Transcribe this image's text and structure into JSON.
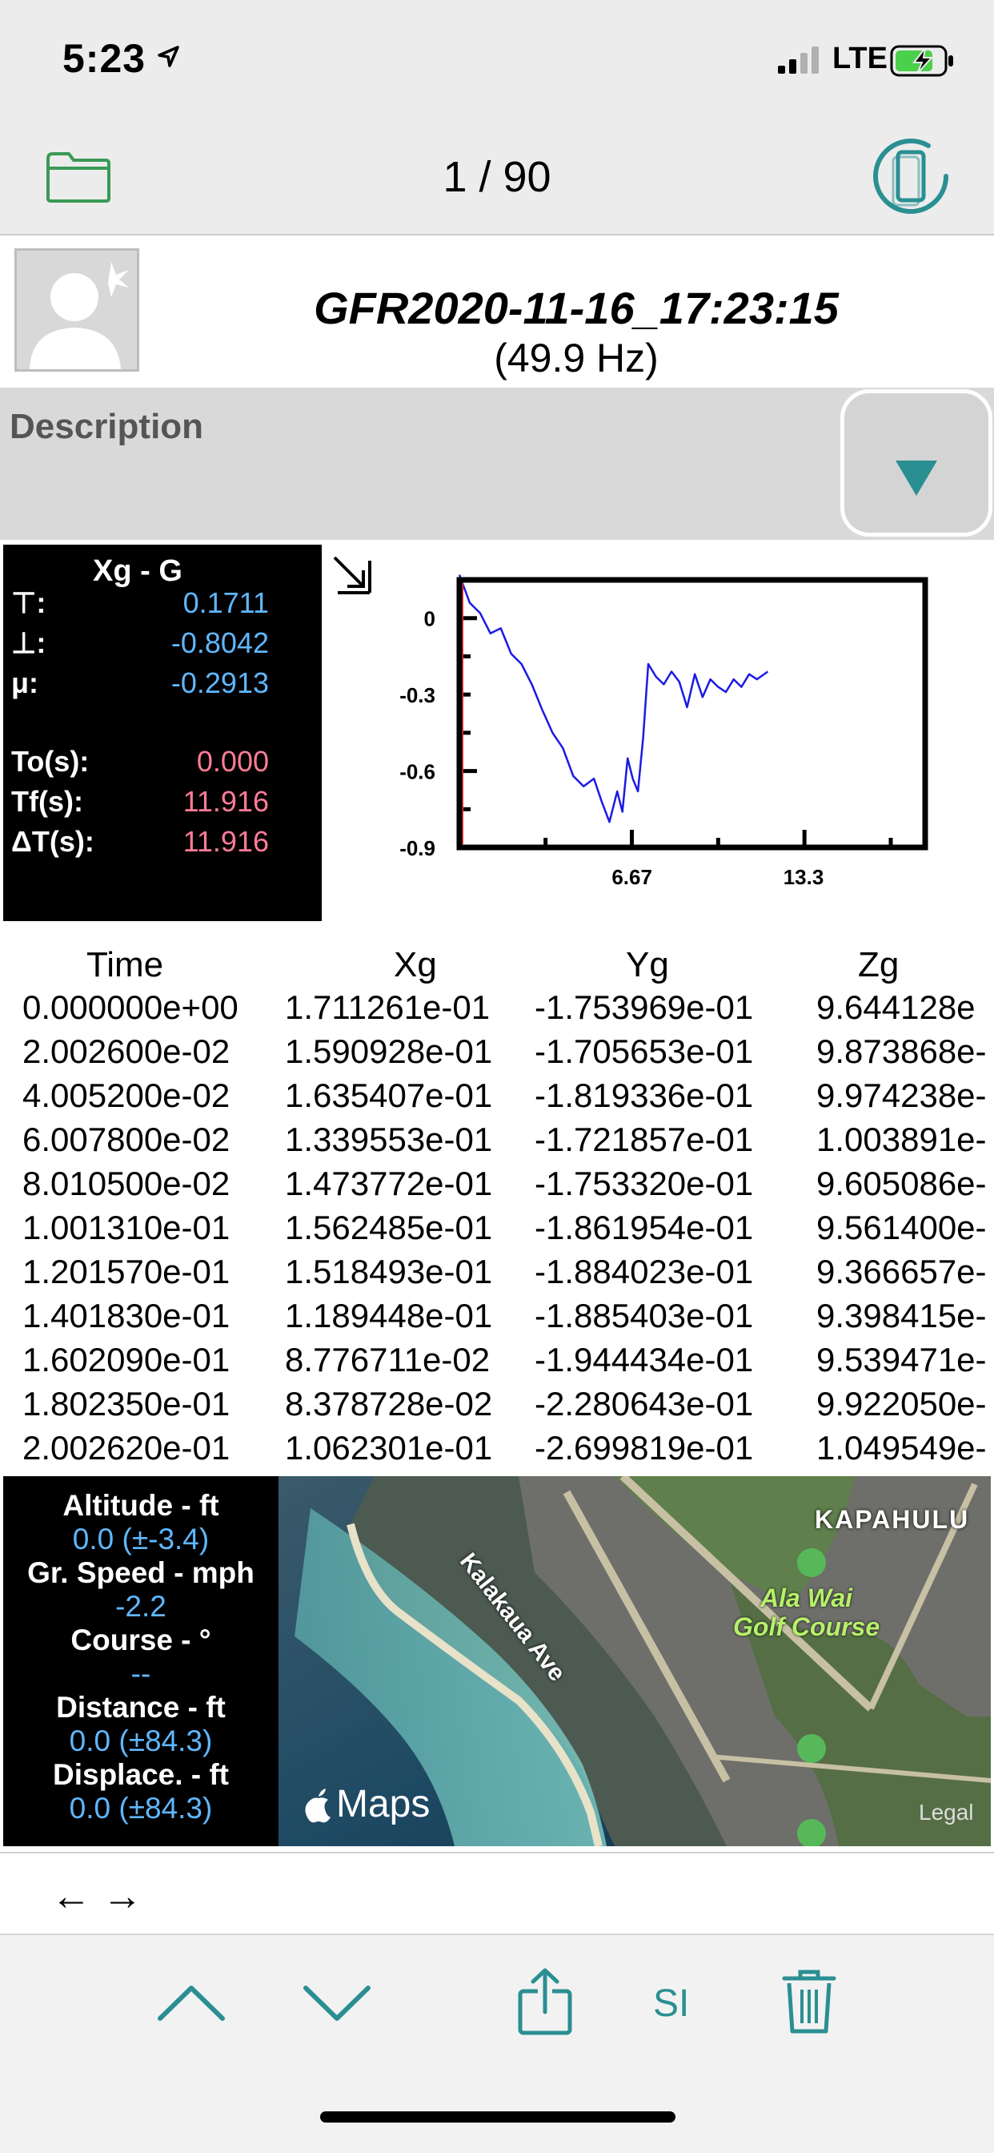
{
  "status_bar": {
    "time": "5:23",
    "network": "LTE"
  },
  "nav": {
    "page_counter": "1 / 90"
  },
  "record": {
    "title": "GFR2020-11-16_17:23:15",
    "rate": "(49.9 Hz)"
  },
  "description": {
    "label": "Description"
  },
  "stats": {
    "title": "Xg - G",
    "rows": [
      {
        "label": "⊤:",
        "value": "0.1711"
      },
      {
        "label": "⊥:",
        "value": "-0.8042"
      },
      {
        "label": "μ:",
        "value": "-0.2913"
      },
      {
        "label": "To(s):",
        "value": "0.000"
      },
      {
        "label": "Tf(s):",
        "value": "11.916"
      },
      {
        "label": "ΔT(s):",
        "value": "11.916"
      }
    ]
  },
  "chart_data": {
    "type": "line",
    "title": "",
    "xlabel": "",
    "ylabel": "",
    "xlim": [
      0,
      18
    ],
    "ylim": [
      -0.9,
      0.15
    ],
    "x_ticks": [
      "6.67",
      "13.3"
    ],
    "x_tick_values": [
      6.67,
      13.3
    ],
    "y_ticks": [
      "0",
      "-0.3",
      "-0.6",
      "-0.9"
    ],
    "y_tick_values": [
      0,
      -0.3,
      -0.6,
      -0.9
    ],
    "series": [
      {
        "color": "#1a1ae6",
        "x": [
          0,
          0.4,
          0.8,
          1.2,
          1.6,
          2.0,
          2.4,
          2.8,
          3.2,
          3.6,
          4.0,
          4.4,
          4.8,
          5.2,
          5.5,
          5.8,
          6.1,
          6.3,
          6.5,
          6.7,
          6.9,
          7.1,
          7.3,
          7.6,
          7.9,
          8.2,
          8.5,
          8.8,
          9.1,
          9.4,
          9.7,
          10.0,
          10.3,
          10.6,
          10.9,
          11.2,
          11.5,
          11.916
        ],
        "y": [
          0.17,
          0.06,
          0.02,
          -0.06,
          -0.04,
          -0.14,
          -0.18,
          -0.26,
          -0.36,
          -0.45,
          -0.51,
          -0.62,
          -0.66,
          -0.63,
          -0.72,
          -0.8,
          -0.68,
          -0.76,
          -0.55,
          -0.63,
          -0.68,
          -0.47,
          -0.18,
          -0.23,
          -0.26,
          -0.21,
          -0.25,
          -0.35,
          -0.22,
          -0.31,
          -0.24,
          -0.27,
          -0.29,
          -0.24,
          -0.27,
          -0.22,
          -0.24,
          -0.21
        ]
      }
    ]
  },
  "table": {
    "headers": [
      "Time",
      "Xg",
      "Yg",
      "Zg"
    ],
    "rows": [
      [
        "0.000000e+00",
        "1.711261e-01",
        "-1.753969e-01",
        "9.644128e"
      ],
      [
        "2.002600e-02",
        "1.590928e-01",
        "-1.705653e-01",
        "9.873868e-"
      ],
      [
        "4.005200e-02",
        "1.635407e-01",
        "-1.819336e-01",
        "9.974238e-"
      ],
      [
        "6.007800e-02",
        "1.339553e-01",
        "-1.721857e-01",
        "1.003891e-"
      ],
      [
        "8.010500e-02",
        "1.473772e-01",
        "-1.753320e-01",
        "9.605086e-"
      ],
      [
        "1.001310e-01",
        "1.562485e-01",
        "-1.861954e-01",
        "9.561400e-"
      ],
      [
        "1.201570e-01",
        "1.518493e-01",
        "-1.884023e-01",
        "9.366657e-"
      ],
      [
        "1.401830e-01",
        "1.189448e-01",
        "-1.885403e-01",
        "9.398415e-"
      ],
      [
        "1.602090e-01",
        "8.776711e-02",
        "-1.944434e-01",
        "9.539471e-"
      ],
      [
        "1.802350e-01",
        "8.378728e-02",
        "-2.280643e-01",
        "9.922050e-"
      ],
      [
        "2.002620e-01",
        "1.062301e-01",
        "-2.699819e-01",
        "1.049549e-"
      ]
    ]
  },
  "gps": {
    "altitude_label": "Altitude - ft",
    "altitude_value": "0.0 (±-3.4)",
    "speed_label": "Gr. Speed - mph",
    "speed_value": "-2.2",
    "course_label": "Course - °",
    "course_value": "--",
    "distance_label": "Distance - ft",
    "distance_value": "0.0 (±84.3)",
    "displace_label": "Displace. - ft",
    "displace_value": "0.0 (±84.3)"
  },
  "map": {
    "attribution": "Maps",
    "legal": "Legal",
    "labels": {
      "street": "Kalakaua Ave",
      "area": "KAPAHULU",
      "golf_1": "Ala Wai",
      "golf_2": "Golf Course"
    }
  },
  "pager": {
    "prev": "←",
    "next": "→"
  },
  "toolbar": {
    "units_label": "SI"
  },
  "colors": {
    "accent": "#2a8f92",
    "folder": "#3a9a55",
    "stats_blue": "#5fb7ff",
    "stats_pink": "#ff7c96"
  }
}
